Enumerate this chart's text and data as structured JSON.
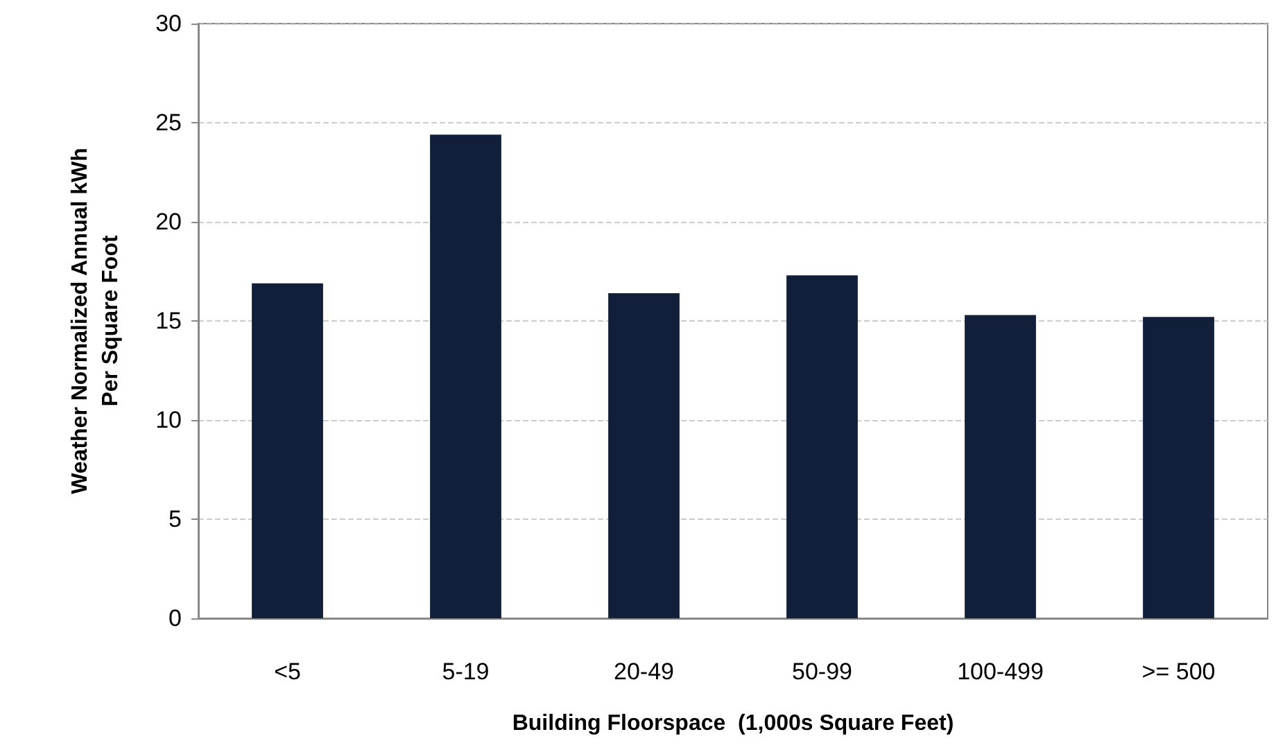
{
  "chart_data": {
    "type": "bar",
    "xlabel": "Building Floorspace  (1,000s Square Feet)",
    "ylabel": "Weather Normalized Annual kWh Per Square Foot",
    "categories": [
      "<5",
      "5-19",
      "20-49",
      "50-99",
      "100-499",
      ">= 500"
    ],
    "values": [
      16.9,
      24.4,
      16.4,
      17.3,
      15.3,
      15.2
    ],
    "color": "#111f3a",
    "ylim": [
      0,
      30
    ],
    "yticks": [
      0,
      5,
      10,
      15,
      20,
      25,
      30
    ],
    "grid": "y"
  }
}
